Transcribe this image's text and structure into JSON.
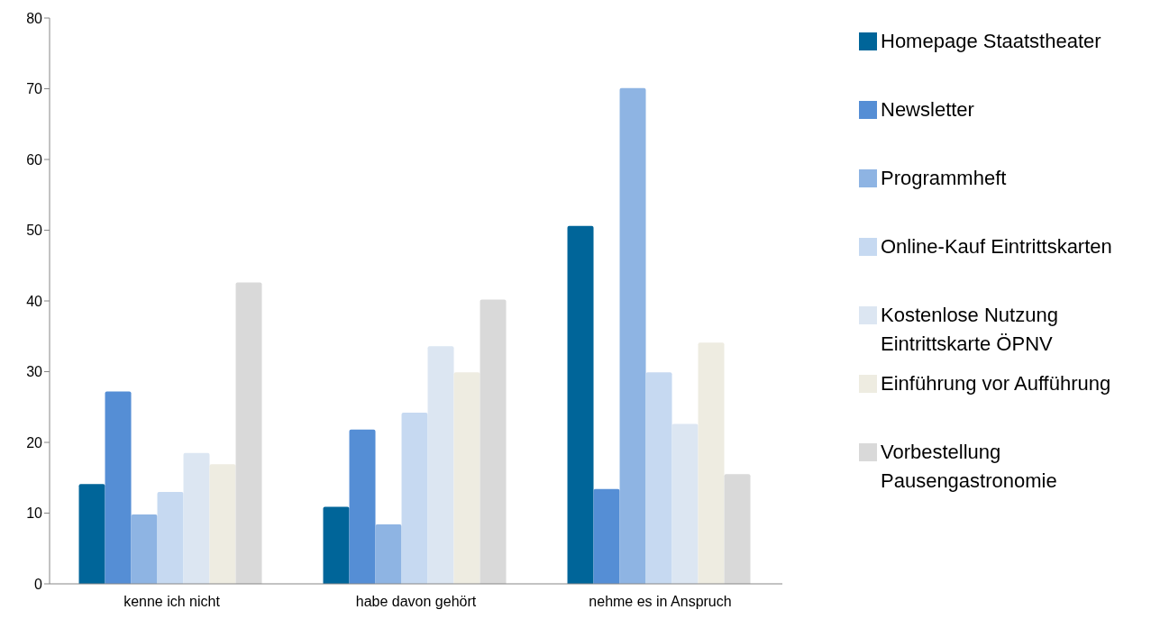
{
  "chart_data": {
    "type": "bar",
    "categories": [
      "kenne ich nicht",
      "habe davon gehört",
      "nehme es in Anspruch"
    ],
    "series": [
      {
        "name": "Homepage Staatstheater",
        "color": "#006599",
        "values": [
          14.1,
          10.9,
          50.6
        ]
      },
      {
        "name": "Newsletter",
        "color": "#558ed5",
        "values": [
          27.2,
          21.8,
          13.4
        ]
      },
      {
        "name": "Programmheft",
        "color": "#8eb4e3",
        "values": [
          9.8,
          8.4,
          70.1
        ]
      },
      {
        "name": "Online-Kauf Eintrittskarten",
        "color": "#c6d9f1",
        "values": [
          13.0,
          24.2,
          29.9
        ]
      },
      {
        "name": "Kostenlose Nutzung Eintrittskarte ÖPNV",
        "color": "#dce6f2",
        "values": [
          18.5,
          33.6,
          22.6
        ]
      },
      {
        "name": "Einführung vor Aufführung",
        "color": "#eeece1",
        "values": [
          16.9,
          29.9,
          34.1
        ]
      },
      {
        "name": "Vorbestellung Pausengastronomie",
        "color": "#d9d9d9",
        "values": [
          42.6,
          40.2,
          15.5
        ]
      }
    ],
    "ylim": [
      0,
      80
    ],
    "yticks": [
      0,
      10,
      20,
      30,
      40,
      50,
      60,
      70,
      80
    ],
    "grid": false,
    "legend": "right"
  }
}
